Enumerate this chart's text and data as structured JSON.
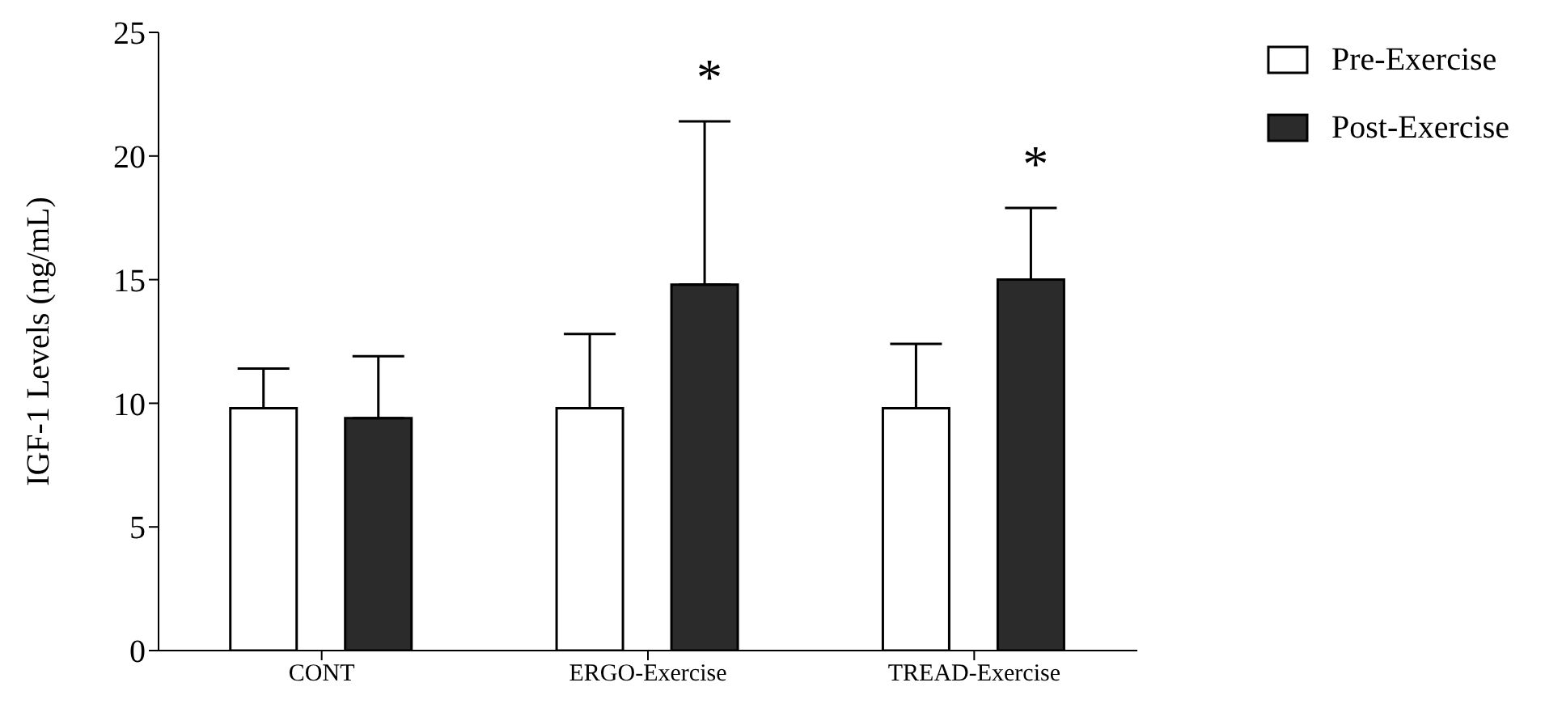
{
  "chart_data": {
    "type": "bar",
    "ylabel": "IGF-1 Levels (ng/mL)",
    "categories": [
      "CONT",
      "ERGO-Exercise",
      "TREAD-Exercise"
    ],
    "series": [
      {
        "name": "Pre-Exercise",
        "color": "#ffffff",
        "values": [
          9.8,
          9.8,
          9.8
        ],
        "errors": [
          [
            9.8,
            11.4
          ],
          [
            9.8,
            12.8
          ],
          [
            9.8,
            12.4
          ]
        ]
      },
      {
        "name": "Post-Exercise",
        "color": "#2b2b2b",
        "values": [
          9.4,
          14.8,
          15.0
        ],
        "errors": [
          [
            9.4,
            11.9
          ],
          [
            14.8,
            21.4
          ],
          [
            15.0,
            17.9
          ]
        ]
      }
    ],
    "ylim": [
      0,
      25
    ],
    "yticks": [
      0,
      5,
      10,
      15,
      20,
      25
    ],
    "grid": false,
    "legend": "top right",
    "annotations": [
      "*",
      "*"
    ]
  }
}
